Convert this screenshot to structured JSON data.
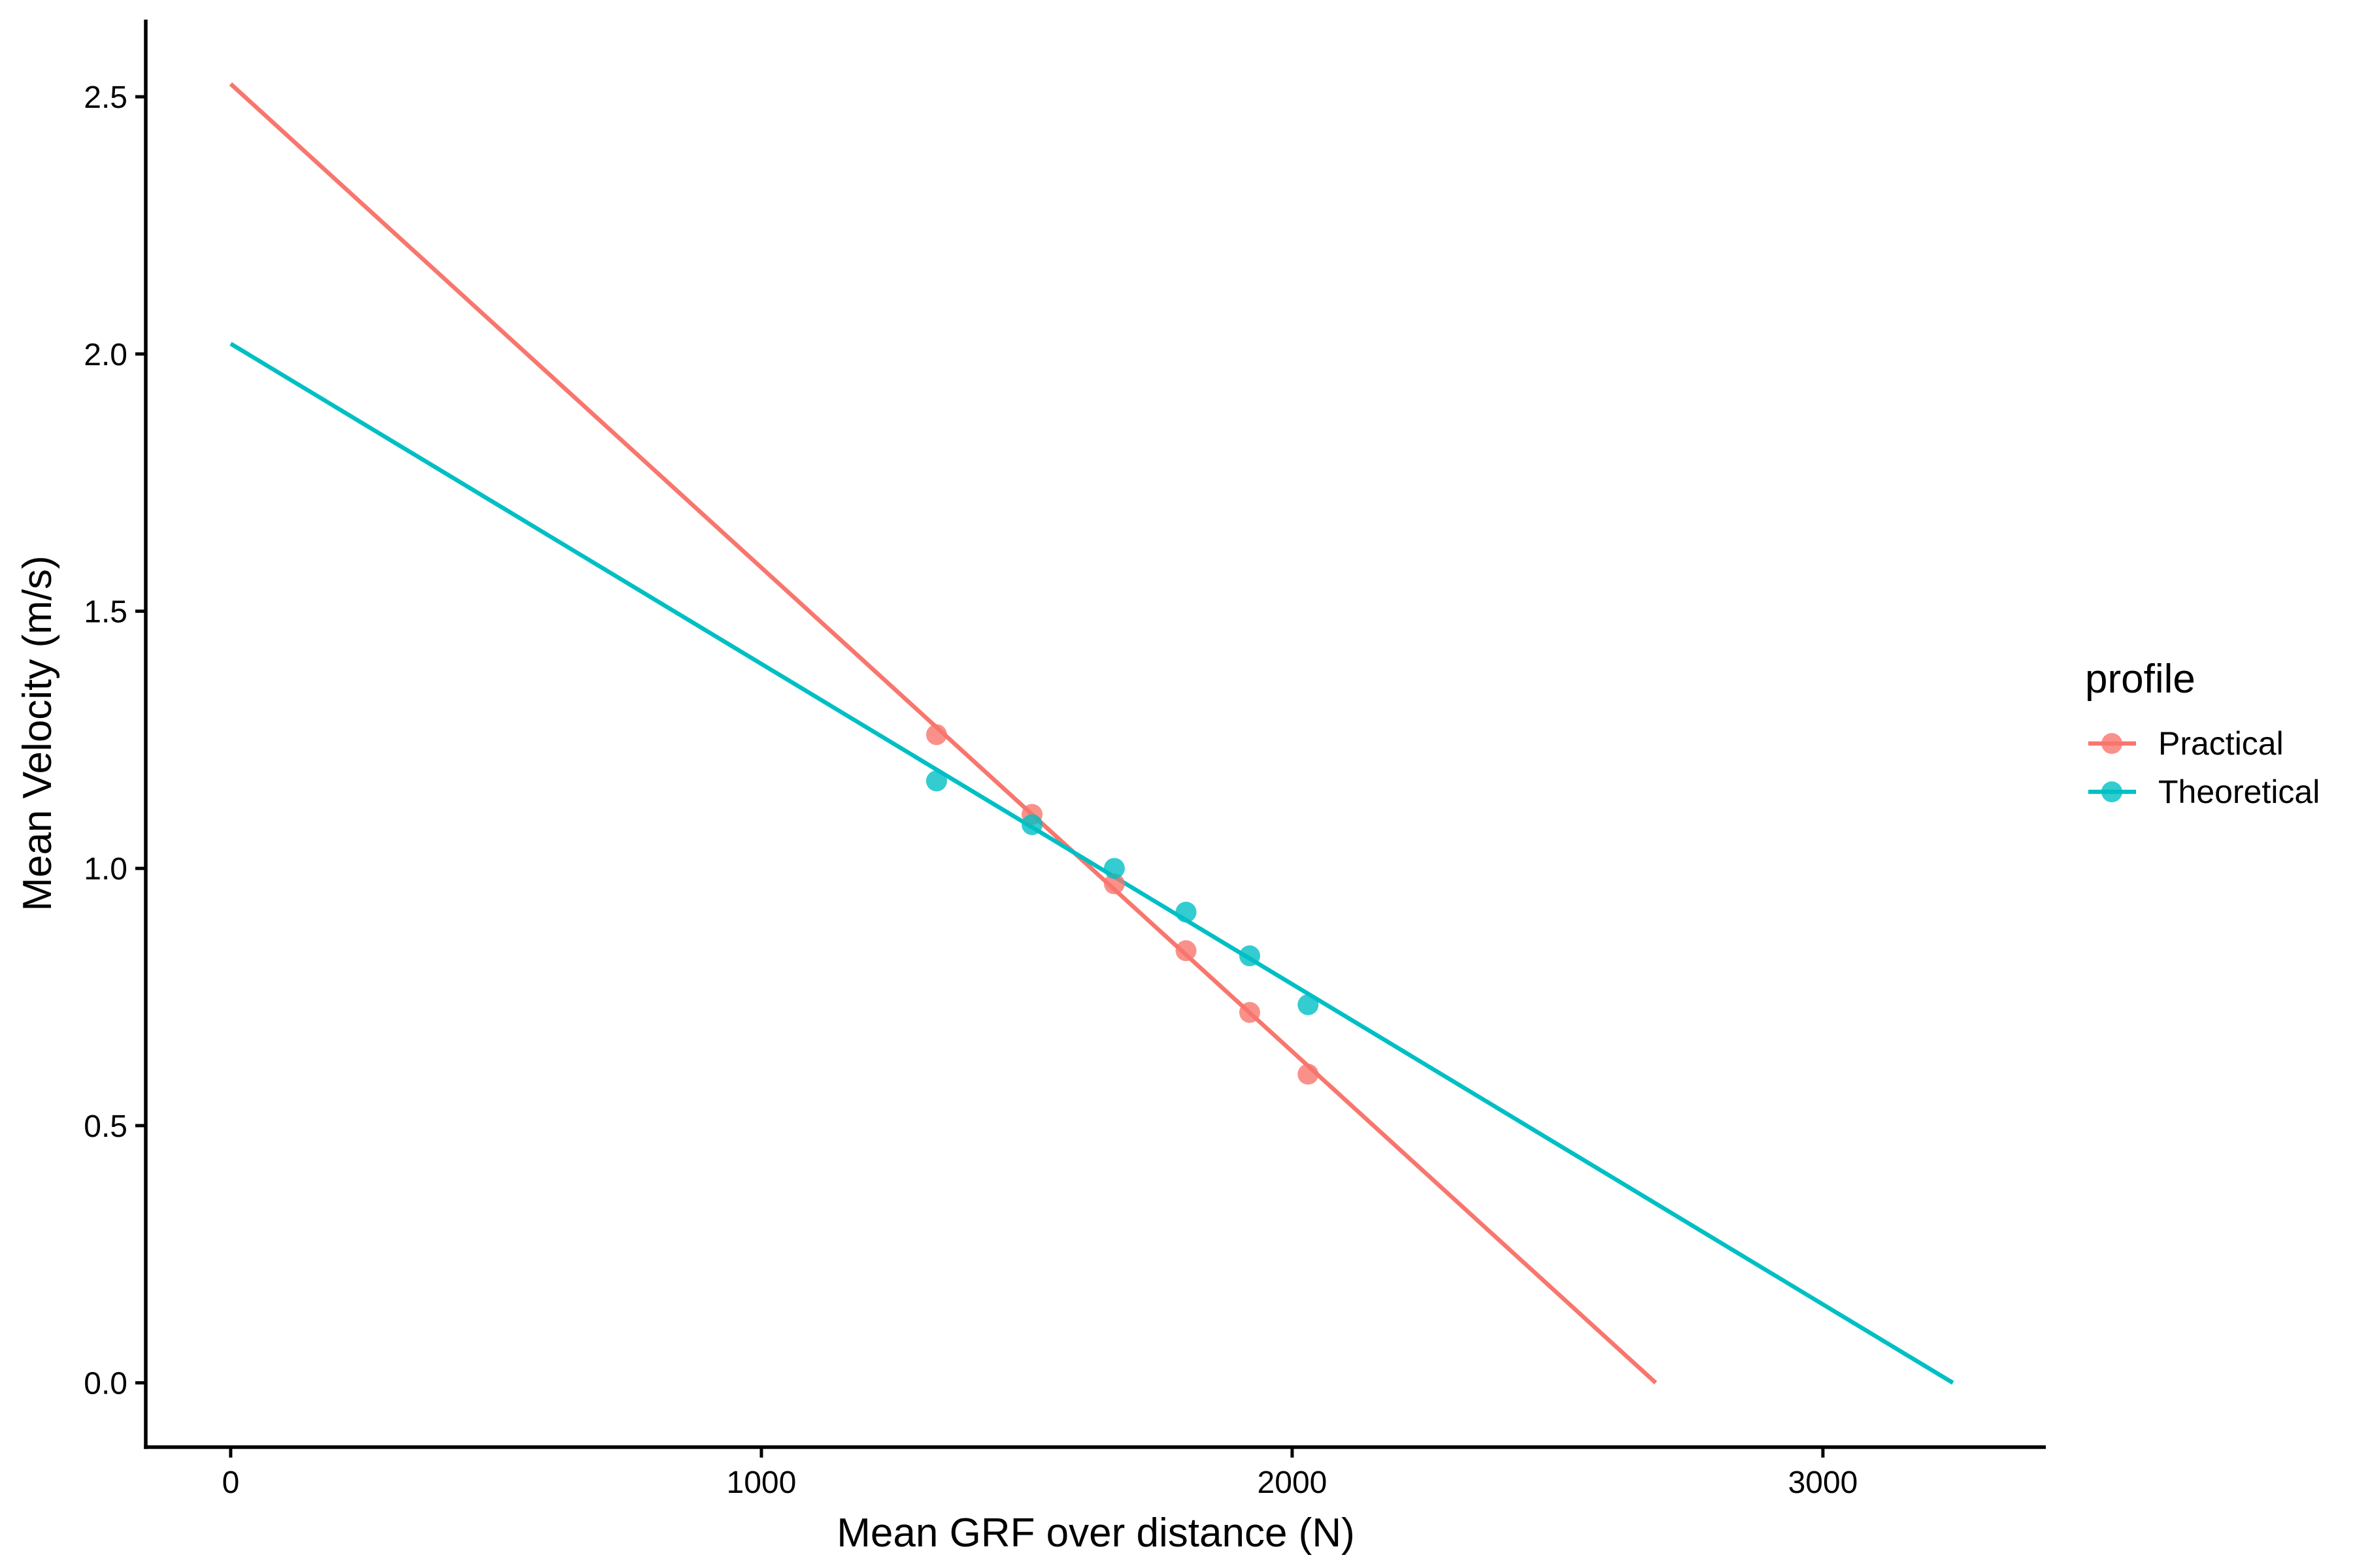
{
  "chart_data": {
    "type": "scatter",
    "title": "",
    "xlabel": "Mean GRF over distance (N)",
    "ylabel": "Mean Velocity (m/s)",
    "xlim": [
      -160,
      3420
    ],
    "ylim": [
      -0.125,
      2.65
    ],
    "x_ticks": [
      0,
      1000,
      2000,
      3000
    ],
    "x_tick_labels": [
      "0",
      "1000",
      "2000",
      "3000"
    ],
    "y_ticks": [
      0.0,
      0.5,
      1.0,
      1.5,
      2.0,
      2.5
    ],
    "y_tick_labels": [
      "0.0",
      "0.5",
      "1.0",
      "1.5",
      "2.0",
      "2.5"
    ],
    "grid": false,
    "legend": {
      "title": "profile",
      "placement": "right"
    },
    "series": [
      {
        "name": "Practical",
        "color": "#F8766D",
        "points": [
          {
            "x": 1330,
            "y": 1.26
          },
          {
            "x": 1510,
            "y": 1.105
          },
          {
            "x": 1665,
            "y": 0.97
          },
          {
            "x": 1800,
            "y": 0.84
          },
          {
            "x": 1920,
            "y": 0.72
          },
          {
            "x": 2030,
            "y": 0.6
          }
        ],
        "fit_line": {
          "x": [
            0,
            2685
          ],
          "y": [
            2.525,
            0.0
          ]
        }
      },
      {
        "name": "Theoretical",
        "color": "#00BFC4",
        "points": [
          {
            "x": 1330,
            "y": 1.17
          },
          {
            "x": 1510,
            "y": 1.085
          },
          {
            "x": 1665,
            "y": 1.0
          },
          {
            "x": 1800,
            "y": 0.915
          },
          {
            "x": 1920,
            "y": 0.83
          },
          {
            "x": 2030,
            "y": 0.735
          }
        ],
        "fit_line": {
          "x": [
            0,
            3245
          ],
          "y": [
            2.02,
            0.0
          ]
        }
      }
    ]
  }
}
